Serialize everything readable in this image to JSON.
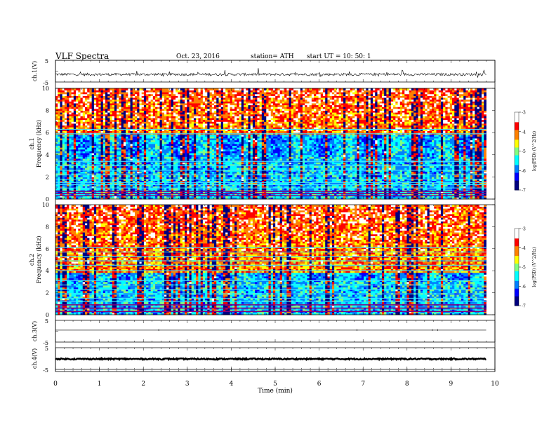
{
  "header": {
    "title": "VLF Spectra",
    "date": "Oct. 23, 2016",
    "station": "station= ATH",
    "start_ut": "start UT =   10: 50: 1"
  },
  "colors": {
    "jet": [
      "#000000",
      "#00007f",
      "#0000ff",
      "#0080ff",
      "#00ffff",
      "#80ff80",
      "#ffff00",
      "#ff8000",
      "#ff0000",
      "#ffffff"
    ]
  },
  "chart_data": [
    {
      "type": "line",
      "name": "ch1-waveform",
      "ylabel": "ch.1(V)",
      "ylim": [
        -5,
        5
      ],
      "yticks": [
        "5",
        "-5"
      ],
      "xlim": [
        0,
        10
      ],
      "baseline": -1.5,
      "noise_amplitude": 0.6,
      "spike_amplitude": 1.8
    },
    {
      "type": "heatmap",
      "name": "ch1-spectrogram",
      "ylabel": "ch.1 Frequency (kHz)",
      "ylabel_line1": "ch.1",
      "ylabel_line2": "Frequency (kHz)",
      "ylim": [
        0,
        10
      ],
      "yticks": [
        0,
        2,
        4,
        6,
        8,
        10
      ],
      "xlim": [
        0,
        10
      ],
      "data_end_min": 9.8,
      "colorbar": {
        "label": "log(PSD) (V^2/Hz)",
        "ticks": [
          -3,
          -4,
          -5,
          -6,
          -7
        ],
        "range": [
          -7,
          -3
        ]
      },
      "bands_khz": [
        0.3,
        0.5,
        0.7,
        1.0,
        1.3,
        1.5,
        1.8,
        2.2,
        2.6,
        3.0,
        3.4,
        5.9,
        6.3
      ],
      "dark_gap_khz": [
        3.8,
        5.8
      ]
    },
    {
      "type": "heatmap",
      "name": "ch2-spectrogram",
      "ylabel": "ch.2 Frequency (kHz)",
      "ylabel_line1": "ch.2",
      "ylabel_line2": "Frequency (kHz)",
      "ylim": [
        0,
        10
      ],
      "yticks": [
        0,
        2,
        4,
        6,
        8,
        10
      ],
      "xlim": [
        0,
        10
      ],
      "data_end_min": 9.8,
      "colorbar": {
        "label": "log(PSD) (V^2/Hz)",
        "ticks": [
          -3,
          -4,
          -5,
          -6,
          -7
        ],
        "range": [
          -7,
          -3
        ]
      },
      "bands_khz": [
        0.3,
        0.6,
        0.9,
        1.2,
        1.5,
        1.9,
        2.3,
        2.7,
        3.1,
        4.0,
        4.5,
        4.9,
        5.3,
        5.7,
        6.1
      ],
      "dark_gap_khz": [
        3.2,
        3.8
      ]
    },
    {
      "type": "line",
      "name": "ch3-waveform",
      "ylabel": "ch.3(V)",
      "ylim": [
        -5,
        5
      ],
      "yticks": [
        "5",
        "-5"
      ],
      "xlim": [
        0,
        10
      ],
      "baseline": 0.5,
      "noise_amplitude": 0.0,
      "spike_amplitude": 0.0
    },
    {
      "type": "line",
      "name": "ch4-waveform",
      "ylabel": "ch.4(V)",
      "ylim": [
        -5,
        5
      ],
      "yticks": [
        "5",
        "-5"
      ],
      "xlim": [
        0,
        10
      ],
      "baseline": -0.2,
      "noise_amplitude": 0.3,
      "spike_amplitude": 0.0
    }
  ],
  "xaxis": {
    "label": "Time (min)",
    "ticks": [
      0,
      1,
      2,
      3,
      4,
      5,
      6,
      7,
      8,
      9,
      10
    ]
  }
}
